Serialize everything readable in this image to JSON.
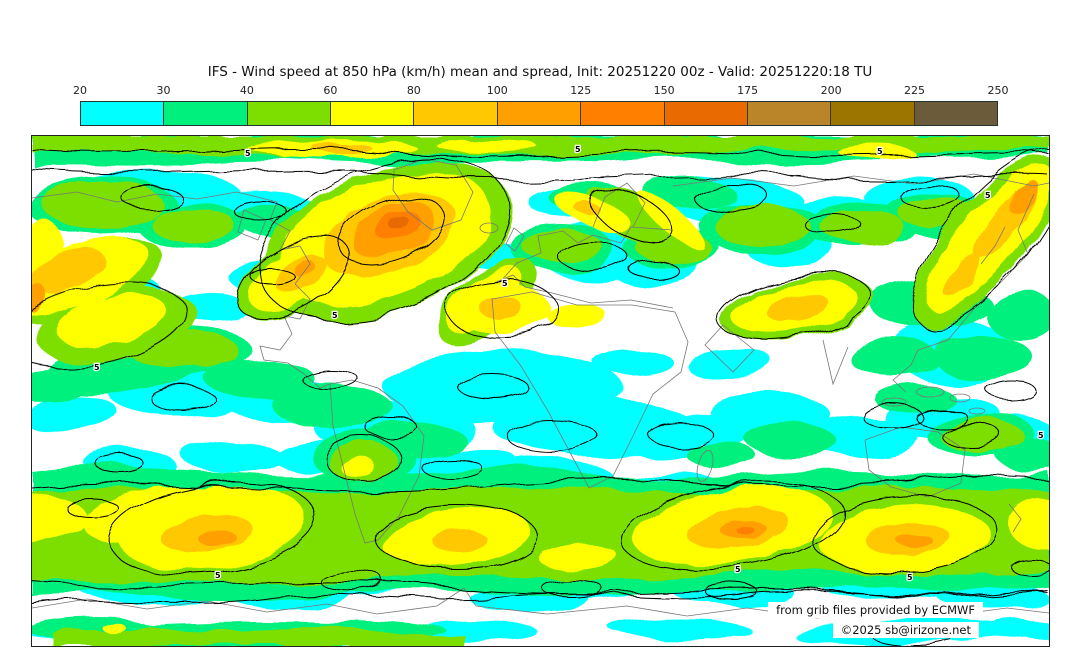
{
  "header": {
    "title": "IFS - Wind speed at 850 hPa (km/h) mean and spread, Init: 20251220 00z - Valid: 20251220:18 TU"
  },
  "colorbar": {
    "ticks": [
      "20",
      "30",
      "40",
      "60",
      "80",
      "100",
      "125",
      "150",
      "175",
      "200",
      "225",
      "250"
    ],
    "segments": [
      {
        "range": "20-30",
        "color": "#00FFFF"
      },
      {
        "range": "30-40",
        "color": "#00F07D"
      },
      {
        "range": "40-60",
        "color": "#7CDF00"
      },
      {
        "range": "60-80",
        "color": "#FFFF00"
      },
      {
        "range": "80-100",
        "color": "#FFC800"
      },
      {
        "range": "100-125",
        "color": "#FFA000"
      },
      {
        "range": "125-150",
        "color": "#FF7F00"
      },
      {
        "range": "150-175",
        "color": "#E86A00"
      },
      {
        "range": "175-200",
        "color": "#BA8428"
      },
      {
        "range": "200-225",
        "color": "#9C7400"
      },
      {
        "range": "225-250",
        "color": "#6B5B3A"
      }
    ],
    "border_color": "#223333",
    "tick_color": "#222222"
  },
  "map": {
    "border_color": "#222222",
    "background": "#FFFFFF",
    "coastline_color": "#777777",
    "spread_contour_color": "#000000",
    "spread_contour_label": "5",
    "attribution_line1": "from grib files provided by ECMWF",
    "attribution_line2": "©2025 sb@irizone.net"
  },
  "chart_data": {
    "type": "heatmap",
    "title": "IFS - Wind speed at 850 hPa (km/h) mean and spread, Init: 20251220 00z - Valid: 20251220:18 TU",
    "model": "IFS",
    "variable": "Wind speed at 850 hPa",
    "units": "km/h",
    "statistics": "ensemble mean (color fill) and ensemble spread (black contours labeled 5)",
    "init": "20251220 00z",
    "valid": "20251220:18 TU",
    "projection": "equirectangular world map, 90N to 90S / 180W to 180E",
    "colorbar_ticks": [
      20,
      30,
      40,
      60,
      80,
      100,
      125,
      150,
      175,
      200,
      225,
      250
    ],
    "colorbar_colors": [
      "#00FFFF",
      "#00F07D",
      "#7CDF00",
      "#FFFF00",
      "#FFC800",
      "#FFA000",
      "#FF7F00",
      "#E86A00",
      "#BA8428",
      "#9C7400",
      "#6B5B3A"
    ],
    "spread_contour_value": 5,
    "features": [
      {
        "region": "North Atlantic south of Greenland",
        "approx_peak_kmh": 160
      },
      {
        "region": "Gulf of Mexico / Florida jet streak",
        "approx_peak_kmh": 110
      },
      {
        "region": "Subtropical central Pacific jet",
        "approx_peak_kmh": 105
      },
      {
        "region": "Scandinavia / NW Russia band",
        "approx_peak_kmh": 80
      },
      {
        "region": "East Asia jet",
        "approx_peak_kmh": 100
      },
      {
        "region": "Northwest Pacific - Kamchatka diagonal band",
        "approx_peak_kmh": 110
      },
      {
        "region": "Arctic circumpolar band",
        "approx_kmh_range": [
          40,
          80
        ]
      },
      {
        "region": "Tropics (ITCZ belt)",
        "approx_kmh_range": [
          20,
          40
        ]
      },
      {
        "region": "Sahara and equatorial Africa",
        "approx_kmh": "below 20"
      },
      {
        "region": "Southeast Pacific storm track",
        "approx_peak_kmh": 110
      },
      {
        "region": "South Atlantic storm track",
        "approx_peak_kmh": 100
      },
      {
        "region": "South Indian Ocean storm track",
        "approx_peak_kmh": 130
      },
      {
        "region": "South of Australia storm track",
        "approx_peak_kmh": 110
      },
      {
        "region": "Antarctic interior",
        "approx_kmh": "below 20 with 20-30 coastal patches"
      }
    ]
  }
}
